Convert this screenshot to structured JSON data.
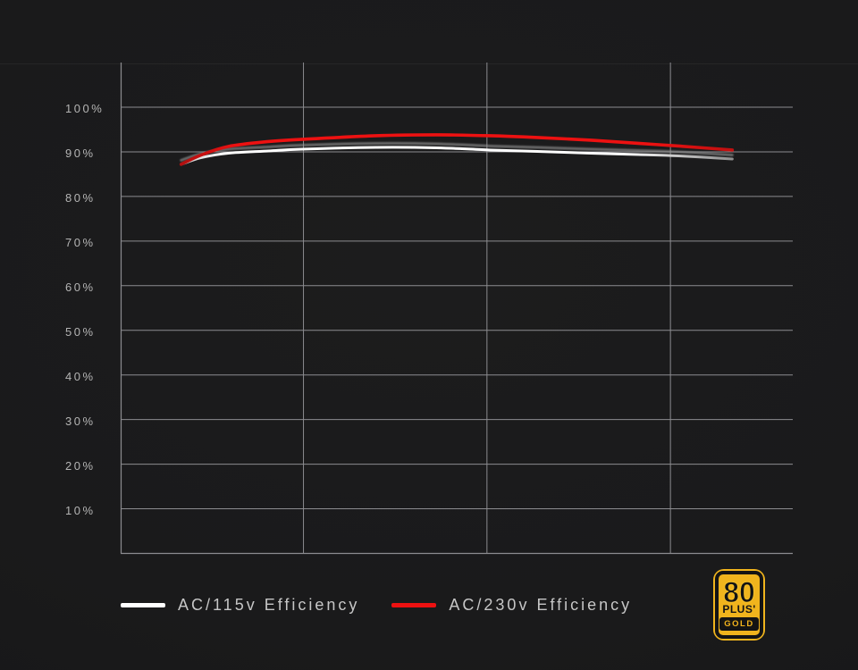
{
  "chart_data": {
    "type": "line",
    "title": "",
    "xlabel": "",
    "ylabel": "",
    "x_note": "x axis is unlabeled (load); x values below are percent of plot width",
    "y_ticks": [
      100,
      90,
      80,
      70,
      60,
      50,
      40,
      30,
      20,
      10
    ],
    "y_tick_suffix": "%",
    "ylim": [
      0,
      110
    ],
    "grid": true,
    "x_gridlines_percent_of_width": [
      27.2,
      54.5,
      81.8
    ],
    "legend_position": "bottom",
    "series": [
      {
        "name": "AC/115v Efficiency",
        "color": "#ffffff",
        "points": [
          [
            9,
            87.2
          ],
          [
            12,
            88.7
          ],
          [
            16,
            89.7
          ],
          [
            22,
            90.2
          ],
          [
            27,
            90.6
          ],
          [
            38,
            91.0
          ],
          [
            47,
            90.9
          ],
          [
            55,
            90.4
          ],
          [
            62,
            90.1
          ],
          [
            70,
            89.7
          ],
          [
            77,
            89.4
          ],
          [
            83,
            89.1
          ],
          [
            91,
            88.4
          ]
        ]
      },
      {
        "name": "AC/230v Efficiency",
        "color": "#ed1111",
        "points": [
          [
            9,
            87.2
          ],
          [
            12,
            89.3
          ],
          [
            16,
            91.2
          ],
          [
            22,
            92.3
          ],
          [
            27,
            92.8
          ],
          [
            38,
            93.6
          ],
          [
            47,
            93.8
          ],
          [
            55,
            93.6
          ],
          [
            62,
            93.2
          ],
          [
            70,
            92.6
          ],
          [
            77,
            91.9
          ],
          [
            83,
            91.3
          ],
          [
            91,
            90.4
          ]
        ]
      }
    ]
  },
  "legend": {
    "items": [
      {
        "label": "AC/115v Efficiency",
        "color": "#ffffff"
      },
      {
        "label": "AC/230v Efficiency",
        "color": "#ed1111"
      }
    ]
  },
  "badge": {
    "number": "80",
    "plus": "PLUS'",
    "tier": "GOLD",
    "gold_color": "#f0b41d",
    "black_color": "#141414"
  },
  "colors": {
    "background": "#1a1a1b",
    "grid": "#8c8c90",
    "tick_text": "#b4b4b4",
    "legend_text": "#c6c6c6",
    "curve_115v": "#ffffff",
    "curve_230v": "#ed1111"
  }
}
